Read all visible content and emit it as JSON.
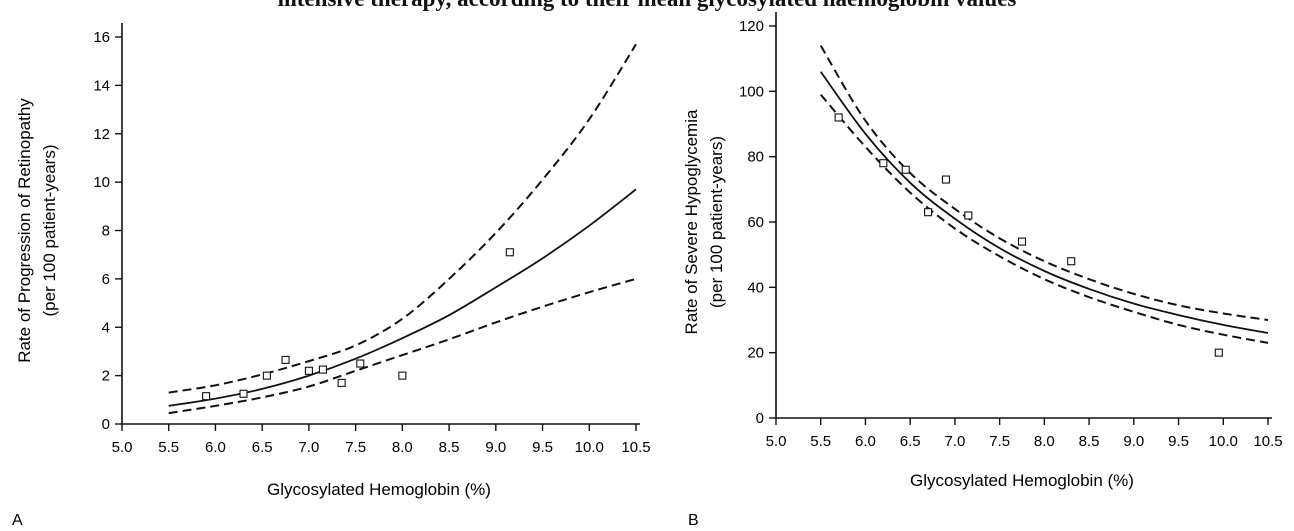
{
  "figure": {
    "title": "intensive therapy, according to their mean glycosylated haemoglobin values"
  },
  "chart_data": [
    {
      "type": "line",
      "panel_label": "A",
      "xlabel": "Glycosylated Hemoglobin (%)",
      "ylabel_line1": "Rate of Progression of Retinopathy",
      "ylabel_line2": "(per 100 patient-years)",
      "xlim": [
        5.0,
        10.5
      ],
      "ylim": [
        0,
        16
      ],
      "xticks": [
        "5.0",
        "5.5",
        "6.0",
        "6.5",
        "7.0",
        "7.5",
        "8.0",
        "8.5",
        "9.0",
        "9.5",
        "10.0",
        "10.5"
      ],
      "yticks": [
        "0",
        "2",
        "4",
        "6",
        "8",
        "10",
        "12",
        "14",
        "16"
      ],
      "grid": false,
      "series": [
        {
          "style": "solid",
          "x": [
            5.5,
            6.0,
            6.5,
            7.0,
            7.5,
            8.0,
            8.5,
            9.0,
            9.5,
            10.0,
            10.5
          ],
          "y": [
            0.75,
            1.05,
            1.45,
            2.0,
            2.7,
            3.55,
            4.5,
            5.65,
            6.85,
            8.2,
            9.7
          ]
        },
        {
          "style": "dashed",
          "x": [
            5.5,
            6.0,
            6.5,
            7.0,
            7.5,
            8.0,
            8.5,
            9.0,
            9.5,
            10.0,
            10.5
          ],
          "y": [
            1.3,
            1.6,
            2.05,
            2.6,
            3.25,
            4.35,
            6.0,
            7.9,
            10.1,
            12.6,
            15.7
          ]
        },
        {
          "style": "dashed",
          "x": [
            5.5,
            6.0,
            6.5,
            7.0,
            7.5,
            8.0,
            8.5,
            9.0,
            9.5,
            10.0,
            10.5
          ],
          "y": [
            0.45,
            0.75,
            1.1,
            1.55,
            2.2,
            2.85,
            3.5,
            4.2,
            4.85,
            5.45,
            6.0
          ]
        },
        {
          "style": "markers",
          "x": [
            5.9,
            6.3,
            6.55,
            6.75,
            7.0,
            7.15,
            7.35,
            7.55,
            8.0,
            9.15
          ],
          "y": [
            1.15,
            1.25,
            2.0,
            2.65,
            2.2,
            2.25,
            1.7,
            2.5,
            2.0,
            7.1
          ]
        }
      ]
    },
    {
      "type": "line",
      "panel_label": "B",
      "xlabel": "Glycosylated Hemoglobin (%)",
      "ylabel_line1": "Rate of Severe Hypoglycemia",
      "ylabel_line2": "(per 100 patient-years)",
      "xlim": [
        5.0,
        10.5
      ],
      "ylim": [
        0,
        120
      ],
      "xticks": [
        "5.0",
        "5.5",
        "6.0",
        "6.5",
        "7.0",
        "7.5",
        "8.0",
        "8.5",
        "9.0",
        "9.5",
        "10.0",
        "10.5"
      ],
      "yticks": [
        "0",
        "20",
        "40",
        "60",
        "80",
        "100",
        "120"
      ],
      "grid": false,
      "series": [
        {
          "style": "solid",
          "x": [
            5.5,
            6.0,
            6.5,
            7.0,
            7.5,
            8.0,
            8.5,
            9.0,
            9.5,
            10.0,
            10.5
          ],
          "y": [
            106,
            87,
            72,
            61,
            52,
            45,
            39.5,
            35,
            31.5,
            28.5,
            26
          ]
        },
        {
          "style": "dashed",
          "x": [
            5.5,
            6.0,
            6.5,
            7.0,
            7.5,
            8.0,
            8.5,
            9.0,
            9.5,
            10.0,
            10.5
          ],
          "y": [
            114,
            91,
            75,
            64,
            55,
            48,
            42.5,
            38,
            34.5,
            32,
            30
          ]
        },
        {
          "style": "dashed",
          "x": [
            5.5,
            6.0,
            6.5,
            7.0,
            7.5,
            8.0,
            8.5,
            9.0,
            9.5,
            10.0,
            10.5
          ],
          "y": [
            99,
            83,
            69,
            58,
            49.5,
            42.5,
            37,
            32.5,
            28.5,
            25.5,
            23
          ]
        },
        {
          "style": "markers",
          "x": [
            5.7,
            6.2,
            6.45,
            6.7,
            6.9,
            7.15,
            7.75,
            8.3,
            9.95
          ],
          "y": [
            92,
            78,
            76,
            63,
            73,
            62,
            54,
            48,
            20
          ]
        }
      ]
    }
  ]
}
